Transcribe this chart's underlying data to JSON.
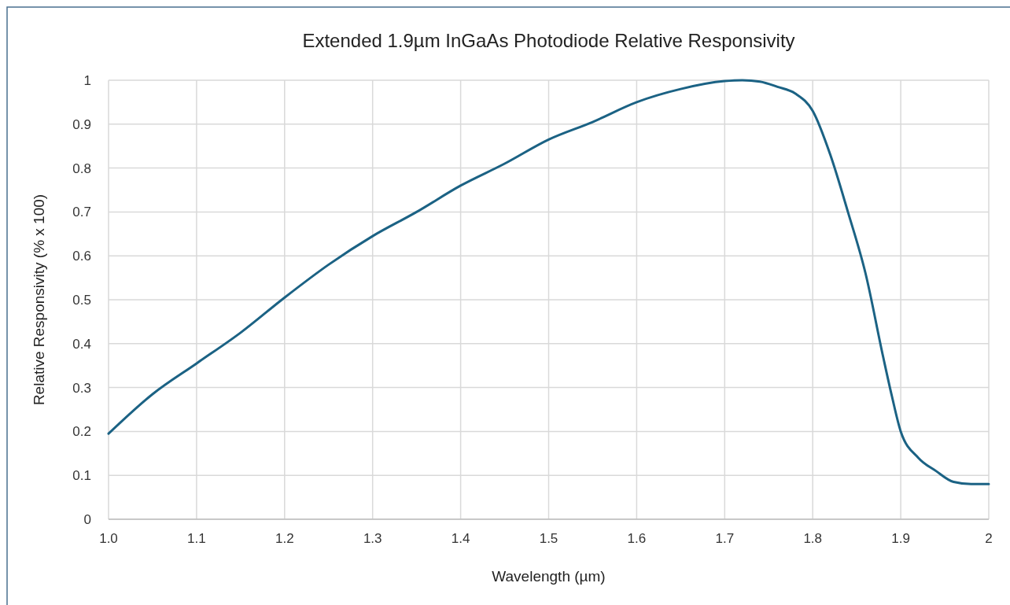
{
  "chart_data": {
    "type": "line",
    "title": "Extended 1.9µm InGaAs Photodiode Relative Responsivity",
    "xlabel": "Wavelength (µm)",
    "ylabel": "Relative Responsivity (% x 100)",
    "x": [
      1.0,
      1.05,
      1.1,
      1.15,
      1.2,
      1.25,
      1.3,
      1.35,
      1.4,
      1.45,
      1.5,
      1.55,
      1.6,
      1.65,
      1.7,
      1.72,
      1.74,
      1.76,
      1.78,
      1.8,
      1.82,
      1.84,
      1.86,
      1.88,
      1.89,
      1.9,
      1.92,
      1.94,
      1.96,
      1.98,
      2.0
    ],
    "series": [
      {
        "color": "#1b6284",
        "values": [
          0.195,
          0.285,
          0.355,
          0.425,
          0.505,
          0.58,
          0.645,
          0.7,
          0.76,
          0.81,
          0.865,
          0.905,
          0.95,
          0.98,
          0.998,
          1.0,
          0.997,
          0.985,
          0.97,
          0.93,
          0.83,
          0.7,
          0.56,
          0.37,
          0.28,
          0.2,
          0.14,
          0.11,
          0.085,
          0.08,
          0.08
        ]
      }
    ],
    "xlim": [
      1.0,
      2.0
    ],
    "xticks": [
      {
        "value": 1.0,
        "label": "1.0"
      },
      1.1,
      1.2,
      1.3,
      1.4,
      1.5,
      1.6,
      1.7,
      1.8,
      1.9,
      2
    ],
    "ylim": [
      0,
      1
    ],
    "yticks": [
      0,
      0.1,
      0.2,
      0.3,
      0.4,
      0.5,
      0.6,
      0.7,
      0.8,
      0.9,
      1
    ],
    "grid": true,
    "line_style": "solid",
    "marker": "none"
  }
}
